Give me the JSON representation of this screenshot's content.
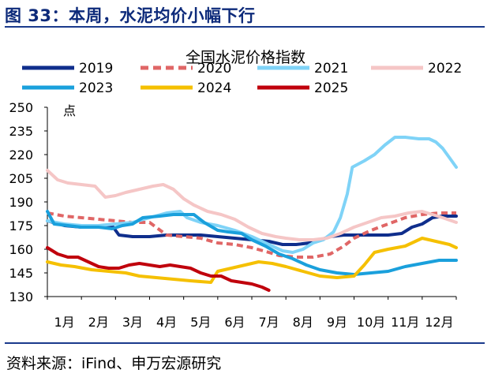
{
  "figure": {
    "title": "图 33：本周，水泥均价小幅下行",
    "source": "资料来源：iFind、申万宏源研究"
  },
  "chart_data": {
    "type": "line",
    "title": "全国水泥价格指数",
    "ylabel": "点",
    "xlabel": "",
    "ylim": [
      130,
      250
    ],
    "yticks": [
      130,
      145,
      160,
      175,
      190,
      205,
      220,
      235,
      250
    ],
    "x_unit": "month (1 = start of Jan, 13 = end of Dec)",
    "categories": [
      "1月",
      "2月",
      "3月",
      "4月",
      "5月",
      "6月",
      "7月",
      "8月",
      "9月",
      "10月",
      "11月",
      "12月"
    ],
    "legend_position": "top",
    "grid": false,
    "series": [
      {
        "name": "2019",
        "color": "#0f2e8c",
        "dash": "solid",
        "width": 4,
        "points": [
          [
            1,
            178
          ],
          [
            1.5,
            175
          ],
          [
            2,
            174
          ],
          [
            2.5,
            174
          ],
          [
            2.9,
            175
          ],
          [
            3.1,
            169
          ],
          [
            3.5,
            168
          ],
          [
            4,
            168
          ],
          [
            4.5,
            169
          ],
          [
            5,
            169
          ],
          [
            5.5,
            169
          ],
          [
            6,
            168
          ],
          [
            6.5,
            167
          ],
          [
            7,
            166
          ],
          [
            7.5,
            165
          ],
          [
            7.9,
            163
          ],
          [
            8.3,
            163
          ],
          [
            8.7,
            164
          ],
          [
            9,
            166
          ],
          [
            9.3,
            168
          ],
          [
            9.7,
            169
          ],
          [
            10,
            169
          ],
          [
            10.5,
            169
          ],
          [
            11,
            169
          ],
          [
            11.4,
            170
          ],
          [
            11.7,
            174
          ],
          [
            12,
            176
          ],
          [
            12.3,
            180
          ],
          [
            12.6,
            181
          ],
          [
            13,
            181
          ]
        ]
      },
      {
        "name": "2020",
        "color": "#e06666",
        "dash": "8,5",
        "width": 4,
        "points": [
          [
            1,
            183
          ],
          [
            1.5,
            181
          ],
          [
            2,
            180
          ],
          [
            2.5,
            179
          ],
          [
            3,
            178
          ],
          [
            3.5,
            177
          ],
          [
            4,
            177
          ],
          [
            4.5,
            169
          ],
          [
            5,
            168
          ],
          [
            5.5,
            167
          ],
          [
            6,
            164
          ],
          [
            6.5,
            163
          ],
          [
            7,
            161
          ],
          [
            7.5,
            158
          ],
          [
            7.8,
            156
          ],
          [
            8.3,
            155
          ],
          [
            8.8,
            155
          ],
          [
            9.3,
            157
          ],
          [
            9.7,
            162
          ],
          [
            10,
            167
          ],
          [
            10.5,
            172
          ],
          [
            11,
            176
          ],
          [
            11.5,
            180
          ],
          [
            12,
            182
          ],
          [
            12.5,
            183
          ],
          [
            13,
            183
          ]
        ]
      },
      {
        "name": "2021",
        "color": "#7fd3f7",
        "dash": "solid",
        "width": 4,
        "points": [
          [
            1,
            178
          ],
          [
            1.5,
            176
          ],
          [
            2,
            175
          ],
          [
            2.5,
            175
          ],
          [
            3,
            176
          ],
          [
            3.5,
            177
          ],
          [
            4,
            180
          ],
          [
            4.5,
            183
          ],
          [
            4.9,
            184
          ],
          [
            5.1,
            180
          ],
          [
            5.5,
            177
          ],
          [
            6,
            175
          ],
          [
            6.5,
            172
          ],
          [
            7,
            168
          ],
          [
            7.5,
            163
          ],
          [
            7.9,
            159
          ],
          [
            8.2,
            158
          ],
          [
            8.5,
            160
          ],
          [
            8.8,
            164
          ],
          [
            9.1,
            166
          ],
          [
            9.4,
            171
          ],
          [
            9.6,
            180
          ],
          [
            9.8,
            195
          ],
          [
            9.95,
            212
          ],
          [
            10.3,
            216
          ],
          [
            10.6,
            220
          ],
          [
            10.9,
            226
          ],
          [
            11.2,
            231
          ],
          [
            11.5,
            231
          ],
          [
            11.9,
            230
          ],
          [
            12.2,
            230
          ],
          [
            12.4,
            228
          ],
          [
            12.6,
            224
          ],
          [
            12.8,
            218
          ],
          [
            13,
            212
          ]
        ]
      },
      {
        "name": "2022",
        "color": "#f5c6c6",
        "dash": "solid",
        "width": 4,
        "points": [
          [
            1,
            210
          ],
          [
            1.3,
            204
          ],
          [
            1.6,
            202
          ],
          [
            2,
            201
          ],
          [
            2.4,
            200
          ],
          [
            2.7,
            193
          ],
          [
            3,
            194
          ],
          [
            3.3,
            196
          ],
          [
            3.7,
            198
          ],
          [
            4.1,
            200
          ],
          [
            4.4,
            201
          ],
          [
            4.7,
            198
          ],
          [
            5,
            192
          ],
          [
            5.3,
            188
          ],
          [
            5.7,
            184
          ],
          [
            6.1,
            182
          ],
          [
            6.5,
            179
          ],
          [
            6.9,
            174
          ],
          [
            7.3,
            170
          ],
          [
            7.7,
            168
          ],
          [
            8,
            167
          ],
          [
            8.4,
            166
          ],
          [
            8.8,
            166
          ],
          [
            9.2,
            167
          ],
          [
            9.6,
            170
          ],
          [
            10,
            174
          ],
          [
            10.4,
            177
          ],
          [
            10.8,
            180
          ],
          [
            11.2,
            181
          ],
          [
            11.6,
            183
          ],
          [
            12,
            184
          ],
          [
            12.3,
            182
          ],
          [
            12.6,
            180
          ],
          [
            13,
            177
          ]
        ]
      },
      {
        "name": "2023",
        "color": "#1aa0dc",
        "dash": "solid",
        "width": 4,
        "points": [
          [
            1,
            184
          ],
          [
            1.2,
            176
          ],
          [
            1.6,
            175
          ],
          [
            2,
            174
          ],
          [
            2.5,
            174
          ],
          [
            2.9,
            173
          ],
          [
            3.2,
            175
          ],
          [
            3.5,
            176
          ],
          [
            3.8,
            180
          ],
          [
            4.3,
            181
          ],
          [
            4.7,
            182
          ],
          [
            5,
            182
          ],
          [
            5.3,
            182
          ],
          [
            5.6,
            177
          ],
          [
            6,
            172
          ],
          [
            6.3,
            171
          ],
          [
            6.7,
            170
          ],
          [
            7,
            166
          ],
          [
            7.4,
            162
          ],
          [
            7.8,
            157
          ],
          [
            8.2,
            154
          ],
          [
            8.6,
            150
          ],
          [
            9,
            147
          ],
          [
            9.5,
            145
          ],
          [
            10,
            144
          ],
          [
            10.5,
            145
          ],
          [
            11,
            146
          ],
          [
            11.5,
            149
          ],
          [
            12,
            151
          ],
          [
            12.5,
            153
          ],
          [
            13,
            153
          ]
        ]
      },
      {
        "name": "2024",
        "color": "#f5c000",
        "dash": "solid",
        "width": 4,
        "points": [
          [
            1,
            152
          ],
          [
            1.4,
            150
          ],
          [
            1.8,
            149
          ],
          [
            2.3,
            147
          ],
          [
            2.8,
            146
          ],
          [
            3.3,
            145
          ],
          [
            3.7,
            143
          ],
          [
            4.2,
            142
          ],
          [
            4.7,
            141
          ],
          [
            5.2,
            140
          ],
          [
            5.8,
            139
          ],
          [
            6,
            146
          ],
          [
            6.4,
            148
          ],
          [
            6.8,
            150
          ],
          [
            7.2,
            152
          ],
          [
            7.6,
            151
          ],
          [
            8,
            149
          ],
          [
            8.5,
            146
          ],
          [
            9,
            143
          ],
          [
            9.5,
            142
          ],
          [
            10,
            143
          ],
          [
            10.3,
            150
          ],
          [
            10.6,
            158
          ],
          [
            11,
            160
          ],
          [
            11.5,
            162
          ],
          [
            11.8,
            165
          ],
          [
            12,
            167
          ],
          [
            12.4,
            165
          ],
          [
            12.8,
            163
          ],
          [
            13,
            161
          ]
        ]
      },
      {
        "name": "2025",
        "color": "#c0000c",
        "dash": "solid",
        "width": 4,
        "points": [
          [
            1,
            161
          ],
          [
            1.3,
            157
          ],
          [
            1.6,
            155
          ],
          [
            1.9,
            155
          ],
          [
            2.2,
            152
          ],
          [
            2.5,
            149
          ],
          [
            2.8,
            148
          ],
          [
            3.1,
            148
          ],
          [
            3.4,
            150
          ],
          [
            3.7,
            151
          ],
          [
            4,
            150
          ],
          [
            4.3,
            149
          ],
          [
            4.6,
            150
          ],
          [
            4.9,
            149
          ],
          [
            5.2,
            148
          ],
          [
            5.5,
            145
          ],
          [
            5.8,
            143
          ],
          [
            6.1,
            143
          ],
          [
            6.4,
            140
          ],
          [
            6.7,
            139
          ],
          [
            7,
            138
          ],
          [
            7.3,
            136
          ],
          [
            7.5,
            134
          ]
        ]
      }
    ]
  }
}
